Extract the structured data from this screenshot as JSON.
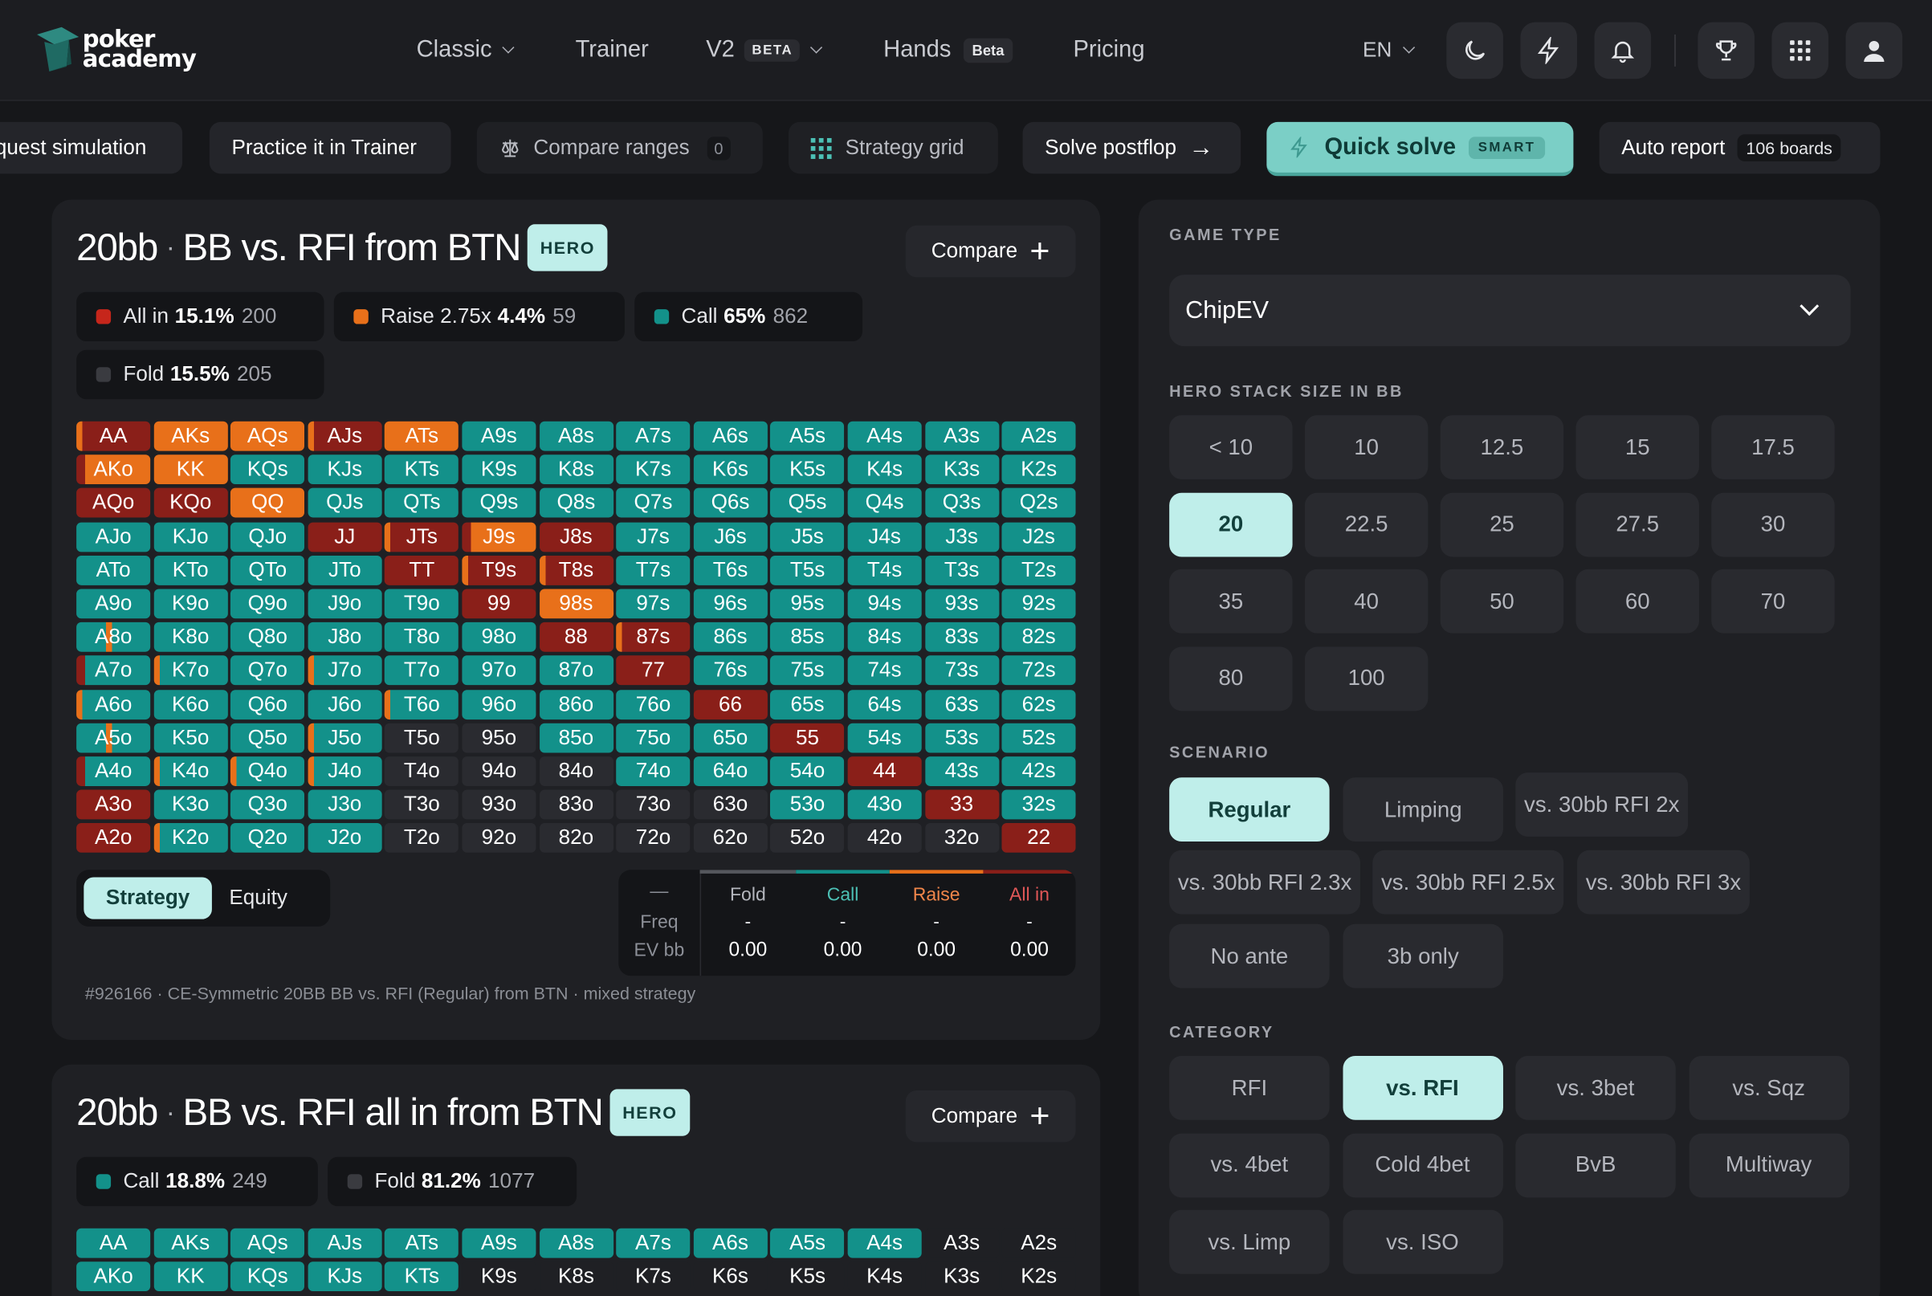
{
  "header": {
    "logo_line1": "poker",
    "logo_line2": "academy",
    "nav": [
      {
        "label": "Classic"
      },
      {
        "label": "Trainer"
      },
      {
        "label": "V2",
        "badge": "BETA"
      },
      {
        "label": "Hands",
        "badge": "Beta"
      },
      {
        "label": "Pricing"
      }
    ],
    "lang": "EN",
    "icons": [
      "moon-icon",
      "lightning-icon",
      "bell-icon",
      "trophy-icon",
      "apps-grid-icon",
      "user-icon"
    ]
  },
  "actions": {
    "request": "quest simulation",
    "practice": "Practice it in Trainer",
    "compare": "Compare ranges",
    "compare_count": "0",
    "grid": "Strategy grid",
    "solve": "Solve postflop",
    "quick": "Quick solve",
    "smart": "SMART",
    "report": "Auto report",
    "report_count": "106 boards"
  },
  "panel1": {
    "stack": "20bb",
    "title": "BB vs. RFI from BTN",
    "hero": "HERO",
    "compare": "Compare",
    "stats": [
      {
        "label": "All in",
        "pct": "15.1%",
        "count": "200",
        "color": "#c6261b"
      },
      {
        "label": "Raise 2.75x",
        "pct": "4.4%",
        "count": "59",
        "color": "#e8701a"
      },
      {
        "label": "Call",
        "pct": "65%",
        "count": "862",
        "color": "#13918a"
      },
      {
        "label": "Fold",
        "pct": "15.5%",
        "count": "205",
        "color": "#3a3b40"
      }
    ],
    "grid": [
      "AA",
      "AKs",
      "AQs",
      "AJs",
      "ATs",
      "A9s",
      "A8s",
      "A7s",
      "A6s",
      "A5s",
      "A4s",
      "A3s",
      "A2s",
      "AKo",
      "KK",
      "KQs",
      "KJs",
      "KTs",
      "K9s",
      "K8s",
      "K7s",
      "K6s",
      "K5s",
      "K4s",
      "K3s",
      "K2s",
      "AQo",
      "KQo",
      "QQ",
      "QJs",
      "QTs",
      "Q9s",
      "Q8s",
      "Q7s",
      "Q6s",
      "Q5s",
      "Q4s",
      "Q3s",
      "Q2s",
      "AJo",
      "KJo",
      "QJo",
      "JJ",
      "JTs",
      "J9s",
      "J8s",
      "J7s",
      "J6s",
      "J5s",
      "J4s",
      "J3s",
      "J2s",
      "ATo",
      "KTo",
      "QTo",
      "JTo",
      "TT",
      "T9s",
      "T8s",
      "T7s",
      "T6s",
      "T5s",
      "T4s",
      "T3s",
      "T2s",
      "A9o",
      "K9o",
      "Q9o",
      "J9o",
      "T9o",
      "99",
      "98s",
      "97s",
      "96s",
      "95s",
      "94s",
      "93s",
      "92s",
      "A8o",
      "K8o",
      "Q8o",
      "J8o",
      "T8o",
      "98o",
      "88",
      "87s",
      "86s",
      "85s",
      "84s",
      "83s",
      "82s",
      "A7o",
      "K7o",
      "Q7o",
      "J7o",
      "T7o",
      "97o",
      "87o",
      "77",
      "76s",
      "75s",
      "74s",
      "73s",
      "72s",
      "A6o",
      "K6o",
      "Q6o",
      "J6o",
      "T6o",
      "96o",
      "86o",
      "76o",
      "66",
      "65s",
      "64s",
      "63s",
      "62s",
      "A5o",
      "K5o",
      "Q5o",
      "J5o",
      "T5o",
      "95o",
      "85o",
      "75o",
      "65o",
      "55",
      "54s",
      "53s",
      "52s",
      "A4o",
      "K4o",
      "Q4o",
      "J4o",
      "T4o",
      "94o",
      "84o",
      "74o",
      "64o",
      "54o",
      "44",
      "43s",
      "42s",
      "A3o",
      "K3o",
      "Q3o",
      "J3o",
      "T3o",
      "93o",
      "83o",
      "73o",
      "63o",
      "53o",
      "43o",
      "33",
      "32s",
      "A2o",
      "K2o",
      "Q2o",
      "J2o",
      "T2o",
      "92o",
      "82o",
      "72o",
      "62o",
      "52o",
      "42o",
      "32o",
      "22"
    ],
    "toggle": {
      "strategy": "Strategy",
      "equity": "Equity"
    },
    "table": {
      "dash": "—",
      "freq": "Freq",
      "ev": "EV bb",
      "cols": [
        {
          "name": "Fold",
          "freq": "-",
          "ev": "0.00",
          "color": "#b4b6bd"
        },
        {
          "name": "Call",
          "freq": "-",
          "ev": "0.00",
          "color": "#4cc0b5"
        },
        {
          "name": "Raise",
          "freq": "-",
          "ev": "0.00",
          "color": "#f0864a"
        },
        {
          "name": "All in",
          "freq": "-",
          "ev": "0.00",
          "color": "#e05757"
        }
      ]
    },
    "footer": "#926166 · CE-Symmetric 20BB BB vs. RFI (Regular) from BTN · mixed strategy"
  },
  "panel2": {
    "stack": "20bb",
    "title": "BB vs. RFI all in from BTN",
    "hero": "HERO",
    "compare": "Compare",
    "stats": [
      {
        "label": "Call",
        "pct": "18.8%",
        "count": "249",
        "color": "#13918a"
      },
      {
        "label": "Fold",
        "pct": "81.2%",
        "count": "1077",
        "color": "#3a3b40"
      }
    ],
    "grid_row1": [
      "AA",
      "AKs",
      "AQs",
      "AJs",
      "ATs",
      "A9s",
      "A8s",
      "A7s",
      "A6s",
      "A5s",
      "A4s",
      "A3s",
      "A2s"
    ],
    "grid_row2": [
      "AKo",
      "KK",
      "KQs",
      "KJs",
      "KTs",
      "K9s",
      "K8s",
      "K7s",
      "K6s",
      "K5s",
      "K4s",
      "K3s",
      "K2s"
    ]
  },
  "settings": {
    "game_type_label": "GAME TYPE",
    "game_type": "ChipEV",
    "stack_label": "HERO STACK SIZE IN BB",
    "stacks": [
      "< 10",
      "10",
      "12.5",
      "15",
      "17.5",
      "20",
      "22.5",
      "25",
      "27.5",
      "30",
      "35",
      "40",
      "50",
      "60",
      "70",
      "80",
      "100"
    ],
    "stack_selected": "20",
    "scenario_label": "SCENARIO",
    "scenarios": [
      "Regular",
      "Limping",
      "vs. 30bb RFI 2x",
      "vs. 30bb RFI 2.3x",
      "vs. 30bb RFI 2.5x",
      "vs. 30bb RFI 3x",
      "No ante",
      "3b only"
    ],
    "scenario_selected": "Regular",
    "category_label": "CATEGORY",
    "categories": [
      "RFI",
      "vs. RFI",
      "vs. 3bet",
      "vs. Sqz",
      "vs. 4bet",
      "Cold 4bet",
      "BvB",
      "Multiway",
      "vs. Limp",
      "vs. ISO"
    ],
    "category_selected": "vs. RFI"
  }
}
